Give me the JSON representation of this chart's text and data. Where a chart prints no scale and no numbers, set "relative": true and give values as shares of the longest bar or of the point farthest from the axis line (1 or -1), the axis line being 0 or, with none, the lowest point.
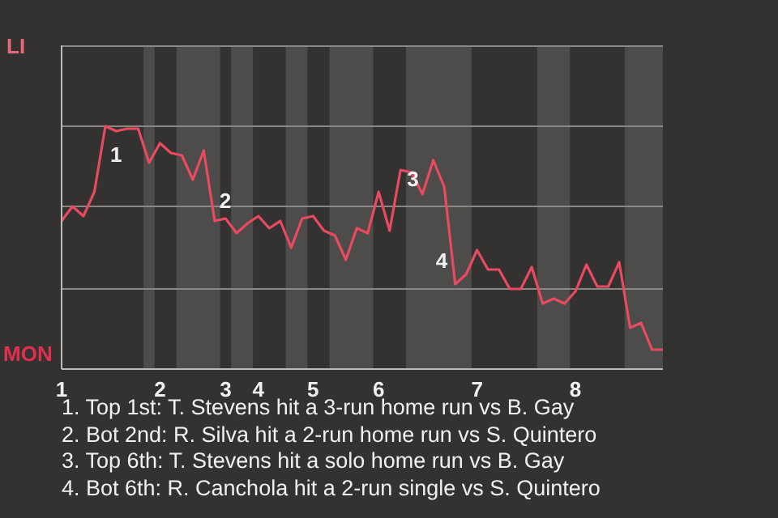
{
  "chart_data": {
    "type": "line",
    "relative": true,
    "categories": [
      "1",
      null,
      null,
      null,
      null,
      null,
      null,
      null,
      null,
      "2",
      null,
      null,
      null,
      null,
      null,
      "3",
      null,
      null,
      "4",
      null,
      null,
      null,
      null,
      "5",
      null,
      null,
      null,
      null,
      null,
      "6",
      null,
      null,
      null,
      null,
      null,
      null,
      null,
      null,
      "7",
      null,
      null,
      null,
      null,
      null,
      null,
      null,
      null,
      "8",
      null,
      null,
      null,
      null,
      null,
      null,
      null,
      null
    ],
    "series": [
      {
        "color": "#e84a5f",
        "values": [
          0.61,
          0.67,
          0.63,
          0.73,
          1,
          0.98,
          0.99,
          0.99,
          0.85,
          0.93,
          0.89,
          0.88,
          0.78,
          0.9,
          0.61,
          0.62,
          0.56,
          0.6,
          0.63,
          0.58,
          0.61,
          0.5,
          0.62,
          0.63,
          0.57,
          0.55,
          0.45,
          0.58,
          0.56,
          0.73,
          0.57,
          0.82,
          0.81,
          0.72,
          0.86,
          0.75,
          0.35,
          0.39,
          0.49,
          0.41,
          0.41,
          0.33,
          0.33,
          0.42,
          0.27,
          0.29,
          0.27,
          0.32,
          0.43,
          0.34,
          0.34,
          0.44,
          0.17,
          0.19,
          0.08,
          0.08
        ]
      }
    ],
    "legend": false,
    "marker": "none",
    "line_style": "solid",
    "ref_lines": [
      {
        "axis": "y",
        "value": 0.33,
        "color": "#8a8886"
      },
      {
        "axis": "y",
        "value": 0.67,
        "color": "#8a8886"
      },
      {
        "axis": "y",
        "value": 1,
        "color": "#8a8886"
      },
      {
        "axis": "y",
        "value": 1.33,
        "color": "#8a8886"
      }
    ],
    "annotations": [
      "LI",
      "MON",
      "1",
      "2",
      "3",
      "4",
      "1. Top 1st: T. Stevens hit a 3-run home run vs B. Gay",
      "2. Bot 2nd: R. Silva hit a 2-run home run vs S. Quintero",
      "3. Top 6th: T. Stevens hit a solo home run vs B. Gay",
      "4. Bot 6th: R. Canchola hit a 2-run single vs S. Quintero"
    ]
  }
}
